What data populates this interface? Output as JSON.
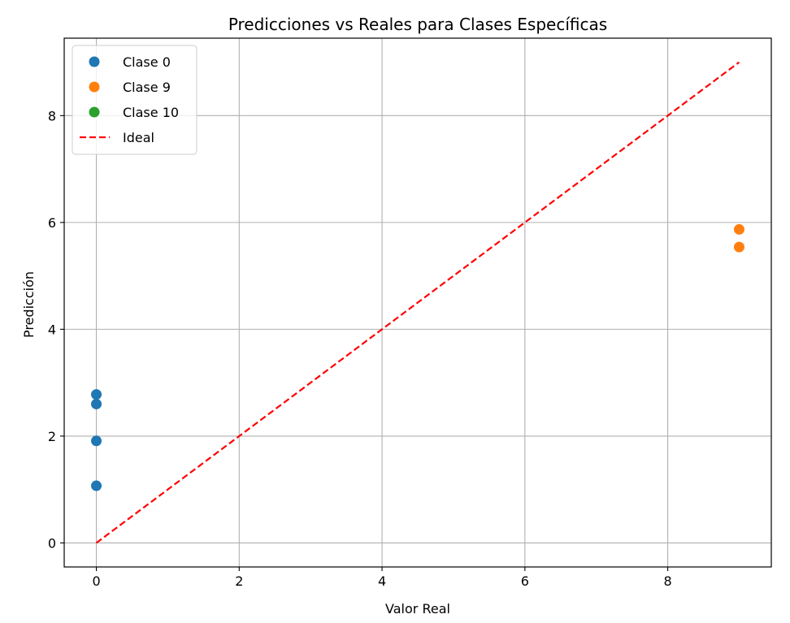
{
  "chart_data": {
    "type": "scatter",
    "title": "Predicciones vs Reales para Clases Específicas",
    "xlabel": "Valor Real",
    "ylabel": "Predicción",
    "xlim": [
      -0.45,
      9.45
    ],
    "ylim": [
      -0.45,
      9.45
    ],
    "xticks": [
      0,
      2,
      4,
      6,
      8
    ],
    "yticks": [
      0,
      2,
      4,
      6,
      8
    ],
    "grid": true,
    "legend_position": "top-left",
    "series": [
      {
        "name": "Clase 0",
        "color": "#1f77b4",
        "points": [
          {
            "x": 0,
            "y": 2.78
          },
          {
            "x": 0,
            "y": 2.6
          },
          {
            "x": 0,
            "y": 1.91
          },
          {
            "x": 0,
            "y": 1.07
          }
        ]
      },
      {
        "name": "Clase 9",
        "color": "#ff7f0e",
        "points": [
          {
            "x": 9,
            "y": 5.87
          },
          {
            "x": 9,
            "y": 5.54
          }
        ]
      },
      {
        "name": "Clase 10",
        "color": "#2ca02c",
        "points": []
      }
    ],
    "reference_line": {
      "name": "Ideal",
      "color": "#ff0000",
      "style": "dashed",
      "from": [
        0,
        0
      ],
      "to": [
        9,
        9
      ]
    }
  }
}
